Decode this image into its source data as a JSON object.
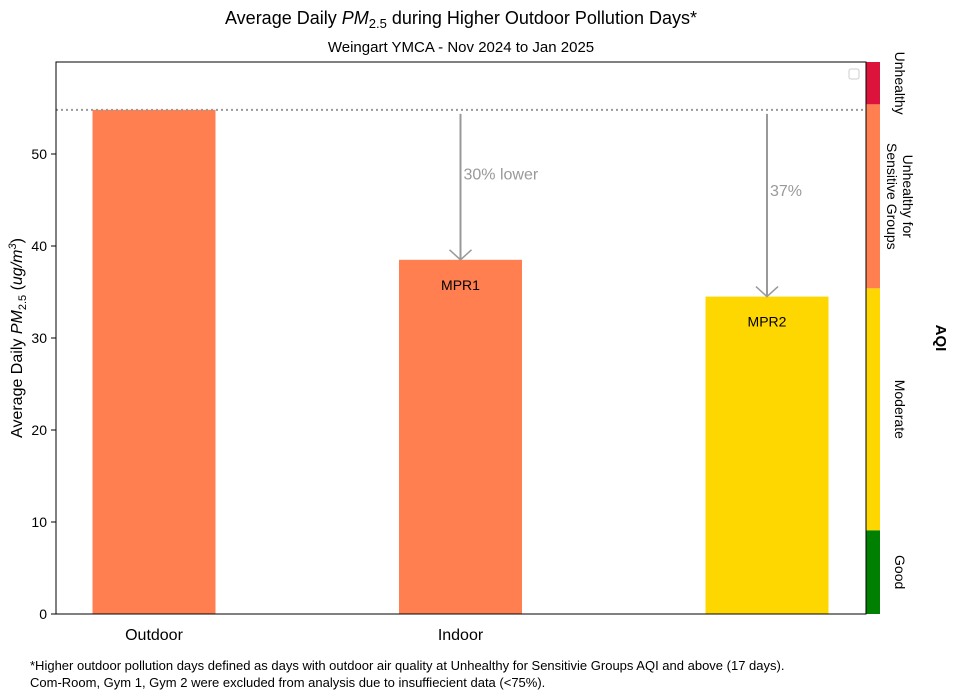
{
  "chart_data": {
    "type": "bar",
    "title": [
      "Average Daily ",
      "PM",
      "2.5",
      " during Higher Outdoor Pollution Days*"
    ],
    "subtitle": "Weingart YMCA - Nov 2024 to Jan 2025",
    "ylabel": [
      "Average Daily ",
      "PM",
      "2.5",
      " (",
      "ug/m",
      "3",
      ")"
    ],
    "categories": [
      "Outdoor",
      "Indoor",
      null
    ],
    "values": [
      54.8,
      38.5,
      34.5
    ],
    "colors": [
      "#ff7f50",
      "#ff7f50",
      "#ffd700"
    ],
    "bar_labels": [
      null,
      "MPR1",
      "MPR2"
    ],
    "value_notes": [
      null,
      "30% lower",
      "37%"
    ],
    "ylim": [
      0,
      60
    ],
    "yticks": [
      0,
      10,
      20,
      30,
      40,
      50
    ],
    "aqi": {
      "label": "AQI",
      "bands": [
        {
          "name": [
            "Good"
          ],
          "from": 0,
          "color": "#008000"
        },
        {
          "name": [
            "Moderate"
          ],
          "from": 9.1,
          "color": "#ffd700"
        },
        {
          "name": [
            "Unhealthy for",
            "Sensitive Groups"
          ],
          "from": 35.4,
          "color": "#ff7f50"
        },
        {
          "name": [
            "Unhealthy"
          ],
          "from": 55.4,
          "color": "#dc143c"
        }
      ]
    },
    "footnotes": [
      "*Higher outdoor pollution days defined as days with outdoor air quality at Unhealthy for Sensitivie Groups AQI and above (17 days).",
      "Com-Room, Gym 1, Gym 2 were excluded from analysis due to insuffiecient data (<75%)."
    ]
  }
}
